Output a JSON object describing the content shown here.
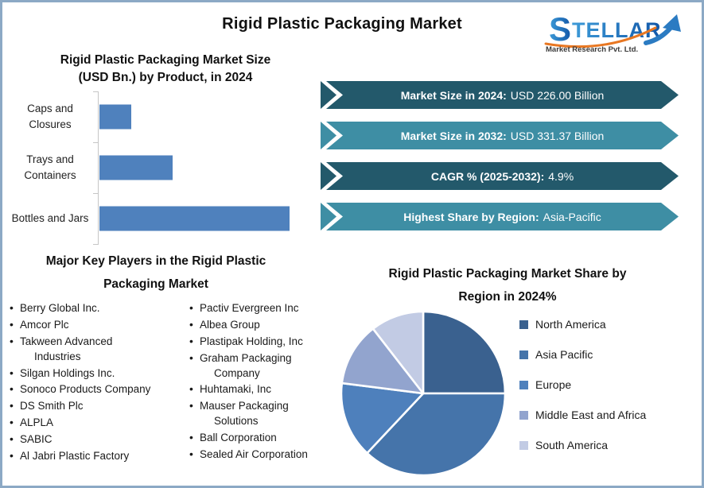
{
  "page": {
    "title": "Rigid Plastic Packaging Market"
  },
  "logo": {
    "brand_initial": "S",
    "brand_rest": "TELLAR",
    "tagline": "Market Research Pvt. Ltd."
  },
  "stats_banners": [
    {
      "label": "Market Size in 2024:",
      "value": "USD 226.00 Billion",
      "tone": "dark"
    },
    {
      "label": "Market Size in 2032:",
      "value": "USD 331.37 Billion",
      "tone": "light"
    },
    {
      "label": "CAGR % (2025-2032):",
      "value": "4.9%",
      "tone": "dark"
    },
    {
      "label": "Highest Share by Region:",
      "value": "Asia-Pacific",
      "tone": "light"
    }
  ],
  "key_players": {
    "heading": "Major Key Players in the Rigid Plastic Packaging Market",
    "column1": [
      "Berry Global Inc.",
      "Amcor Plc",
      "Takween Advanced Industries",
      "Silgan Holdings Inc.",
      "Sonoco Products Company",
      "DS Smith Plc",
      "ALPLA",
      "SABIC",
      "Al Jabri Plastic Factory"
    ],
    "column2": [
      "Pactiv Evergreen Inc",
      "Albea Group",
      "Plastipak Holding, Inc",
      "Graham Packaging Company",
      "Huhtamaki, Inc",
      "Mauser Packaging Solutions",
      "Ball Corporation",
      "Sealed Air Corporation"
    ]
  },
  "chart_data": [
    {
      "type": "bar",
      "orientation": "horizontal",
      "title": "Rigid Plastic Packaging Market Size (USD Bn.) by Product, in 2024",
      "categories": [
        "Caps and Closures",
        "Trays and Containers",
        "Bottles and Jars"
      ],
      "values": [
        41,
        93,
        242
      ],
      "value_note": "no value axis labels shown; values are relative bar lengths",
      "bar_color": "#4F81BD",
      "axis_color": "#C6C6C6",
      "xlabel": "",
      "ylabel": "",
      "grid": false,
      "legend": false
    },
    {
      "type": "pie",
      "title": "Rigid Plastic Packaging Market Share by Region in 2024%",
      "labels": [
        "North America",
        "Asia Pacific",
        "Europe",
        "Middle East and Africa",
        "South America"
      ],
      "values": [
        25,
        37,
        15,
        12.5,
        10.5
      ],
      "value_note": "approximate % share estimated from slice angles; no data labels shown",
      "colors": [
        "#3A618F",
        "#4574AA",
        "#4E80BC",
        "#92A4CE",
        "#C2CBE4"
      ],
      "legend_position": "right",
      "start_angle": "12 o'clock, clockwise"
    }
  ],
  "colors": {
    "banner_dark": "#23596B",
    "banner_light": "#3E8EA4",
    "frame_border": "#8CA9C5",
    "bar_blue": "#4F81BD",
    "logo_blue": "#1B6FC0",
    "logo_orange": "#E87722"
  }
}
